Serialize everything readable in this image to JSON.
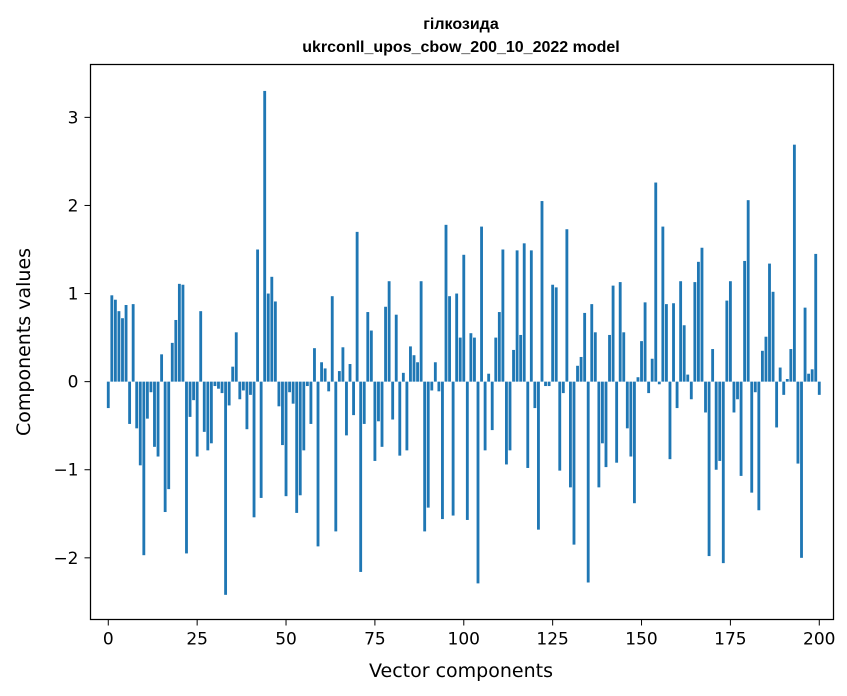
{
  "chart_data": {
    "type": "bar",
    "title": "гілкозида",
    "subtitle": "ukrconll_upos_cbow_200_10_2022 model",
    "xlabel": "Vector components",
    "ylabel": "Components values",
    "xlim": [
      -5,
      204
    ],
    "ylim": [
      -2.7,
      3.6
    ],
    "xticks": [
      0,
      25,
      50,
      75,
      100,
      125,
      150,
      175,
      200
    ],
    "yticks": [
      -2,
      -1,
      0,
      1,
      2,
      3
    ],
    "ytick_labels": [
      "−2",
      "−1",
      "0",
      "1",
      "2",
      "3"
    ],
    "bar_color": "#1f77b4",
    "grid": false,
    "legend": "none",
    "values": [
      -0.3,
      0.98,
      0.93,
      0.8,
      0.72,
      0.87,
      -0.48,
      0.88,
      -0.53,
      -0.95,
      -1.97,
      -0.42,
      -0.12,
      -0.74,
      -0.85,
      0.31,
      -1.48,
      -1.22,
      0.44,
      0.7,
      1.11,
      1.1,
      -1.95,
      -0.4,
      -0.21,
      -0.85,
      0.8,
      -0.57,
      -0.78,
      -0.7,
      -0.05,
      -0.08,
      -0.13,
      -2.42,
      -0.27,
      0.17,
      0.56,
      -0.2,
      -0.1,
      -0.54,
      -0.15,
      -1.54,
      1.5,
      -1.32,
      3.3,
      1.0,
      1.19,
      0.91,
      -0.28,
      -0.72,
      -1.3,
      -0.12,
      -0.25,
      -1.49,
      -1.29,
      -0.78,
      -0.05,
      -0.48,
      0.38,
      -1.87,
      0.22,
      0.15,
      -0.11,
      0.97,
      -1.7,
      0.12,
      0.39,
      -0.61,
      0.2,
      -0.38,
      1.7,
      -2.16,
      -0.48,
      0.79,
      0.58,
      -0.9,
      -0.45,
      -0.74,
      0.85,
      1.14,
      -0.43,
      0.76,
      -0.84,
      0.1,
      -0.78,
      0.4,
      0.3,
      0.22,
      1.14,
      -1.7,
      -1.43,
      -0.1,
      0.22,
      -0.11,
      -1.56,
      1.78,
      0.97,
      -1.52,
      1.0,
      0.5,
      1.44,
      -1.57,
      0.55,
      0.5,
      -2.29,
      1.76,
      -0.78,
      0.09,
      -0.55,
      0.5,
      0.79,
      1.5,
      -0.94,
      -0.78,
      0.36,
      1.49,
      0.53,
      1.57,
      -0.98,
      1.49,
      -0.3,
      -1.68,
      2.05,
      -0.05,
      -0.05,
      1.1,
      1.07,
      -1.01,
      -0.13,
      1.73,
      -1.2,
      -1.85,
      0.18,
      0.28,
      0.78,
      -2.28,
      0.88,
      0.56,
      -1.2,
      -0.7,
      -0.97,
      0.53,
      1.09,
      -0.92,
      1.13,
      0.56,
      -0.53,
      -0.85,
      -1.38,
      0.05,
      0.46,
      0.9,
      -0.13,
      0.26,
      2.26,
      -0.03,
      1.76,
      0.88,
      -0.88,
      0.89,
      -0.3,
      1.14,
      0.64,
      0.08,
      -0.2,
      1.13,
      1.36,
      1.52,
      -0.35,
      -1.98,
      0.37,
      -1.0,
      -0.9,
      -2.06,
      0.92,
      1.14,
      -0.35,
      -0.2,
      -1.07,
      1.37,
      2.06,
      -1.26,
      -0.12,
      -1.46,
      0.35,
      0.51,
      1.34,
      1.02,
      -0.52,
      0.16,
      -0.15,
      0.03,
      0.37,
      2.69,
      -0.93,
      -2.0,
      0.84,
      0.09,
      0.14,
      1.45,
      -0.15
    ]
  }
}
